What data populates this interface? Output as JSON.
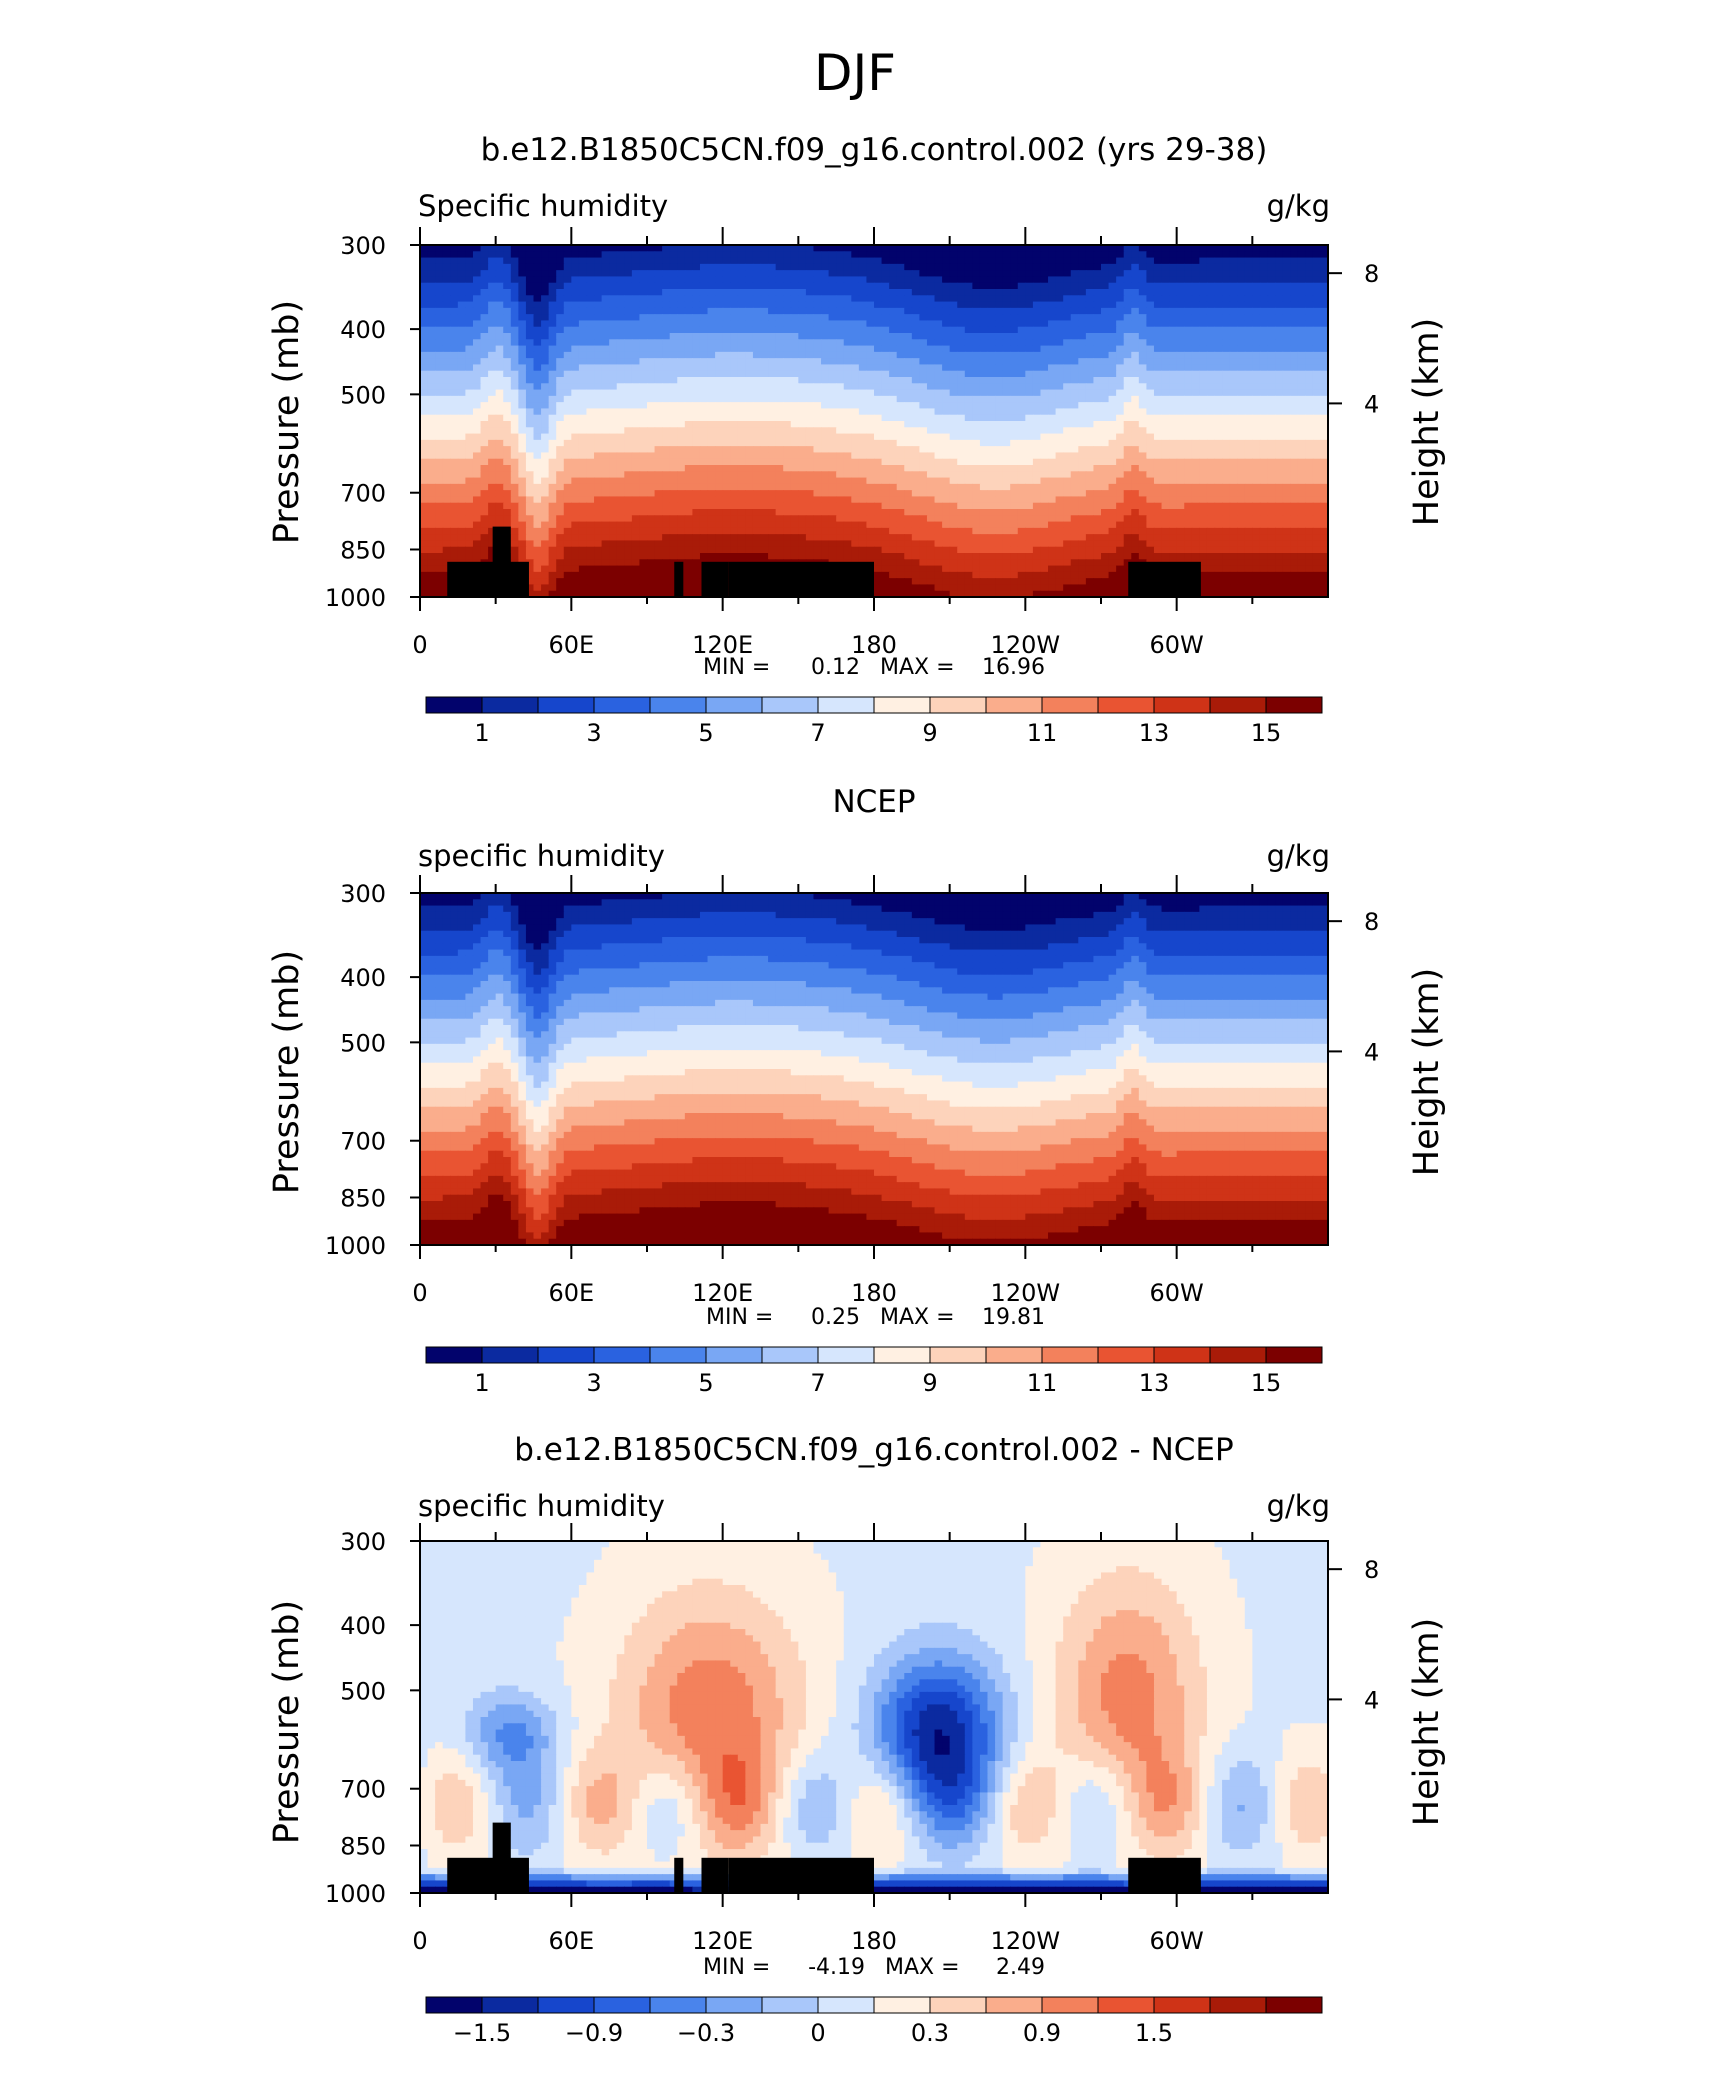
{
  "figure": {
    "title": "DJF"
  },
  "chart_data": [
    {
      "type": "heatmap",
      "title": "b.e12.B1850C5CN.f09_g16.control.002 (yrs 29-38)",
      "variable_label": "Specific humidity",
      "units": "g/kg",
      "ylabel": "Pressure (mb)",
      "y2label": "Height (km)",
      "y_ticks": [
        "300",
        "400",
        "500",
        "700",
        "850",
        "1000"
      ],
      "y2_ticks": [
        "8",
        "4"
      ],
      "x_ticks": [
        "0",
        "60E",
        "120E",
        "180",
        "120W",
        "60W"
      ],
      "ylim": [
        1000,
        300
      ],
      "xlim": [
        0,
        360
      ],
      "min_label": "MIN =",
      "min_value": "0.12",
      "max_label": "MAX =",
      "max_value": "16.96",
      "colorbar_labels": [
        "1",
        "3",
        "5",
        "7",
        "9",
        "11",
        "13",
        "15"
      ],
      "colorbar_colors": [
        "#02036c",
        "#0b2aa0",
        "#1646cc",
        "#2a62e0",
        "#4a84ec",
        "#79a7f4",
        "#a9c7fa",
        "#d6e6fd",
        "#fff0e2",
        "#fdd3bb",
        "#faad8c",
        "#f3815c",
        "#e95432",
        "#cf3317",
        "#a91b08",
        "#7c0000"
      ]
    },
    {
      "type": "heatmap",
      "title": "NCEP",
      "variable_label": "specific humidity",
      "units": "g/kg",
      "ylabel": "Pressure (mb)",
      "y2label": "Height (km)",
      "y_ticks": [
        "300",
        "400",
        "500",
        "700",
        "850",
        "1000"
      ],
      "y2_ticks": [
        "8",
        "4"
      ],
      "x_ticks": [
        "0",
        "60E",
        "120E",
        "180",
        "120W",
        "60W"
      ],
      "ylim": [
        1000,
        300
      ],
      "xlim": [
        0,
        360
      ],
      "min_label": "MIN =",
      "min_value": "0.25",
      "max_label": "MAX =",
      "max_value": "19.81",
      "colorbar_labels": [
        "1",
        "3",
        "5",
        "7",
        "9",
        "11",
        "13",
        "15"
      ],
      "colorbar_colors": [
        "#02036c",
        "#0b2aa0",
        "#1646cc",
        "#2a62e0",
        "#4a84ec",
        "#79a7f4",
        "#a9c7fa",
        "#d6e6fd",
        "#fff0e2",
        "#fdd3bb",
        "#faad8c",
        "#f3815c",
        "#e95432",
        "#cf3317",
        "#a91b08",
        "#7c0000"
      ]
    },
    {
      "type": "heatmap",
      "title": "b.e12.B1850C5CN.f09_g16.control.002 - NCEP",
      "variable_label": "specific humidity",
      "units": "g/kg",
      "ylabel": "Pressure (mb)",
      "y2label": "Height (km)",
      "y_ticks": [
        "300",
        "400",
        "500",
        "700",
        "850",
        "1000"
      ],
      "y2_ticks": [
        "8",
        "4"
      ],
      "x_ticks": [
        "0",
        "60E",
        "120E",
        "180",
        "120W",
        "60W"
      ],
      "ylim": [
        1000,
        300
      ],
      "xlim": [
        0,
        360
      ],
      "min_label": "MIN =",
      "min_value": "-4.19",
      "max_label": "MAX =",
      "max_value": "2.49",
      "colorbar_labels": [
        "−1.5",
        "−0.9",
        "−0.3",
        "0",
        "0.3",
        "0.9",
        "1.5"
      ],
      "colorbar_colors": [
        "#02036c",
        "#0b2aa0",
        "#1646cc",
        "#2a62e0",
        "#4a84ec",
        "#79a7f4",
        "#a9c7fa",
        "#d6e6fd",
        "#fff0e2",
        "#fdd3bb",
        "#faad8c",
        "#f3815c",
        "#e95432",
        "#cf3317",
        "#a91b08",
        "#7c0000"
      ]
    }
  ]
}
